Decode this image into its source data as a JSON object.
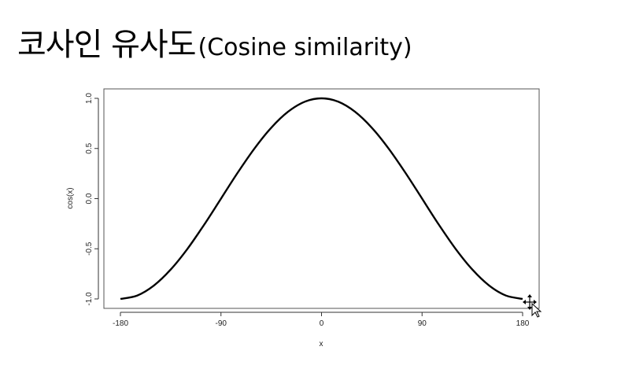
{
  "slide": {
    "title_korean": "코사인 유사도",
    "title_english": "(Cosine similarity)"
  },
  "chart_data": {
    "type": "line",
    "title": "",
    "xlabel": "x",
    "ylabel": "cos(x)",
    "xlim": [
      -180,
      180
    ],
    "ylim": [
      -1.0,
      1.0
    ],
    "x_ticks": [
      -180,
      -90,
      0,
      90,
      180
    ],
    "x_tick_labels": [
      "-180",
      "-90",
      "0",
      "90",
      "180"
    ],
    "y_ticks": [
      -1.0,
      -0.5,
      0.0,
      0.5,
      1.0
    ],
    "y_tick_labels": [
      "-1.0",
      "-0.5",
      "0.0",
      "0.5",
      "1.0"
    ],
    "grid": false,
    "series": [
      {
        "color": "#000000",
        "x": [
          -180,
          -165,
          -150,
          -135,
          -120,
          -105,
          -90,
          -75,
          -60,
          -45,
          -30,
          -15,
          0,
          15,
          30,
          45,
          60,
          75,
          90,
          105,
          120,
          135,
          150,
          165,
          180
        ],
        "y": [
          -1.0,
          -0.966,
          -0.866,
          -0.707,
          -0.5,
          -0.259,
          0.0,
          0.259,
          0.5,
          0.707,
          0.866,
          0.966,
          1.0,
          0.966,
          0.866,
          0.707,
          0.5,
          0.259,
          0.0,
          -0.259,
          -0.5,
          -0.707,
          -0.866,
          -0.966,
          -1.0
        ]
      }
    ]
  },
  "cursor": {
    "icon": "move-cursor-icon"
  }
}
